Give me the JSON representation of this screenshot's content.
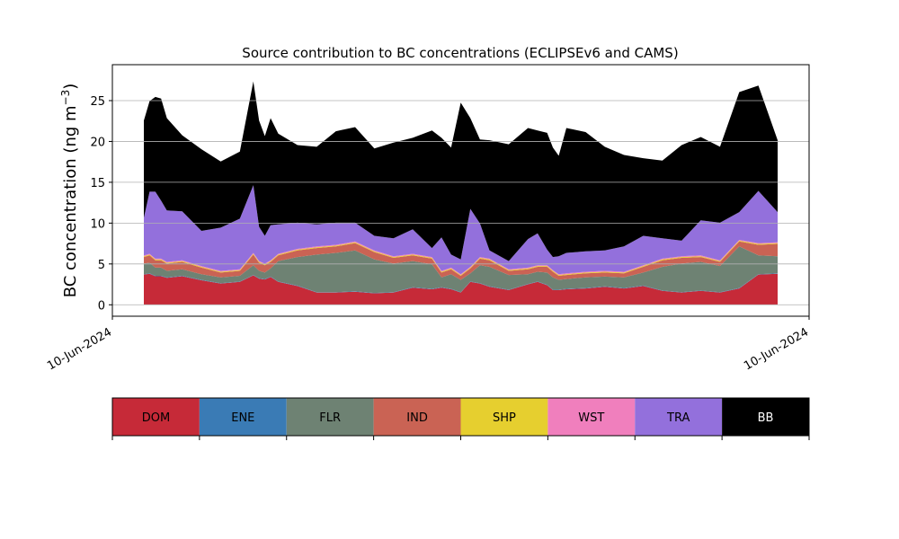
{
  "chart_data": {
    "type": "area",
    "stacked": true,
    "title": "Source contribution to BC concentrations (ECLIPSEv6 and CAMS)",
    "ylabel_text": "BC concentration (ng m",
    "ylabel_sup": "−3",
    "ylabel_close": ")",
    "xlabel": "",
    "ylim": [
      -1.4,
      29.4
    ],
    "yticks": [
      0,
      5,
      10,
      15,
      20,
      25
    ],
    "ygrid": true,
    "xticks": [
      "10-Jun-2024",
      "10-Jun-2024"
    ],
    "x": [
      0,
      0.3,
      0.6,
      0.9,
      1.2,
      2,
      3,
      4,
      5,
      5.7,
      6,
      6.3,
      6.6,
      7,
      8,
      9,
      10,
      11,
      12,
      13,
      14,
      15,
      15.5,
      16,
      16.5,
      17,
      17.5,
      18,
      19,
      20,
      20.5,
      21,
      21.3,
      21.6,
      22,
      23,
      24,
      25,
      26,
      27,
      28,
      29,
      30,
      31,
      32,
      33
    ],
    "series": [
      {
        "name": "DOM",
        "color": "#c62a38",
        "values": [
          3.7,
          3.8,
          3.5,
          3.5,
          3.3,
          3.5,
          3.0,
          2.6,
          2.8,
          3.6,
          3.2,
          3.1,
          3.4,
          2.8,
          2.3,
          1.5,
          1.5,
          1.6,
          1.4,
          1.5,
          2.1,
          1.9,
          2.1,
          1.9,
          1.5,
          2.8,
          2.6,
          2.2,
          1.8,
          2.5,
          2.8,
          2.4,
          1.8,
          1.8,
          1.9,
          2.0,
          2.2,
          2.0,
          2.3,
          1.7,
          1.5,
          1.7,
          1.5,
          2.0,
          3.7,
          3.8
        ]
      },
      {
        "name": "ENE",
        "color": "#3a7bb5",
        "values": [
          0.05,
          0.05,
          0.05,
          0.05,
          0.05,
          0.05,
          0.05,
          0.05,
          0.05,
          0.05,
          0.05,
          0.05,
          0.05,
          0.05,
          0.05,
          0.05,
          0.05,
          0.05,
          0.05,
          0.05,
          0.05,
          0.05,
          0.05,
          0.05,
          0.05,
          0.05,
          0.05,
          0.05,
          0.05,
          0.05,
          0.05,
          0.05,
          0.05,
          0.05,
          0.05,
          0.05,
          0.05,
          0.05,
          0.05,
          0.05,
          0.05,
          0.05,
          0.05,
          0.05,
          0.05,
          0.05
        ]
      },
      {
        "name": "FLR",
        "color": "#6e8273",
        "values": [
          1.3,
          1.3,
          1.0,
          1.0,
          0.8,
          0.8,
          0.7,
          0.7,
          0.7,
          1.2,
          0.9,
          0.8,
          1.0,
          2.5,
          3.5,
          4.6,
          4.8,
          5.0,
          4.1,
          3.5,
          3.2,
          3.0,
          1.2,
          1.8,
          1.5,
          1.0,
          2.2,
          2.4,
          1.8,
          1.2,
          1.2,
          1.5,
          1.5,
          1.2,
          1.2,
          1.3,
          1.2,
          1.3,
          1.6,
          2.9,
          3.5,
          3.5,
          3.2,
          5.1,
          2.3,
          2.1
        ]
      },
      {
        "name": "IND",
        "color": "#ca6354",
        "values": [
          0.8,
          0.9,
          0.9,
          0.9,
          0.9,
          0.9,
          0.8,
          0.6,
          0.6,
          1.3,
          1.0,
          0.9,
          0.8,
          0.7,
          0.8,
          0.8,
          0.8,
          0.9,
          0.9,
          0.7,
          0.7,
          0.7,
          0.6,
          0.6,
          0.5,
          0.6,
          0.8,
          0.8,
          0.5,
          0.6,
          0.6,
          0.7,
          0.7,
          0.5,
          0.5,
          0.5,
          0.5,
          0.5,
          0.7,
          0.8,
          0.7,
          0.6,
          0.5,
          0.6,
          1.3,
          1.5
        ]
      },
      {
        "name": "SHP",
        "color": "#e6cf2f",
        "values": [
          0.1,
          0.1,
          0.1,
          0.1,
          0.1,
          0.1,
          0.1,
          0.1,
          0.1,
          0.1,
          0.1,
          0.1,
          0.1,
          0.1,
          0.1,
          0.1,
          0.1,
          0.1,
          0.1,
          0.1,
          0.1,
          0.1,
          0.1,
          0.1,
          0.1,
          0.1,
          0.1,
          0.1,
          0.1,
          0.1,
          0.1,
          0.1,
          0.1,
          0.1,
          0.1,
          0.1,
          0.1,
          0.1,
          0.1,
          0.1,
          0.1,
          0.1,
          0.1,
          0.1,
          0.1,
          0.1
        ]
      },
      {
        "name": "WST",
        "color": "#f07fbd",
        "values": [
          0.1,
          0.1,
          0.1,
          0.1,
          0.1,
          0.1,
          0.1,
          0.1,
          0.1,
          0.1,
          0.1,
          0.1,
          0.1,
          0.1,
          0.1,
          0.1,
          0.1,
          0.1,
          0.1,
          0.1,
          0.1,
          0.1,
          0.1,
          0.1,
          0.1,
          0.1,
          0.1,
          0.1,
          0.1,
          0.1,
          0.1,
          0.1,
          0.1,
          0.1,
          0.1,
          0.1,
          0.1,
          0.1,
          0.1,
          0.1,
          0.1,
          0.1,
          0.1,
          0.1,
          0.1,
          0.1
        ]
      },
      {
        "name": "TRA",
        "color": "#9370dc",
        "values": [
          4.6,
          7.6,
          8.2,
          7.1,
          6.3,
          6.0,
          4.3,
          5.3,
          6.2,
          8.3,
          4.2,
          3.4,
          4.3,
          3.6,
          3.2,
          2.7,
          2.7,
          2.3,
          1.8,
          2.2,
          3.0,
          1.1,
          4.1,
          1.6,
          1.8,
          7.1,
          4.1,
          1.0,
          1.0,
          3.5,
          3.9,
          1.9,
          1.6,
          2.2,
          2.5,
          2.5,
          2.5,
          3.1,
          3.6,
          2.5,
          1.9,
          4.3,
          4.6,
          3.4,
          6.4,
          3.7
        ]
      },
      {
        "name": "BB",
        "color": "#000000",
        "values": [
          11.9,
          11.1,
          11.6,
          12.5,
          11.3,
          9.3,
          10.0,
          8.1,
          8.2,
          12.7,
          13.0,
          12.2,
          13.1,
          11.1,
          9.5,
          9.5,
          11.2,
          11.7,
          10.7,
          11.7,
          11.2,
          14.4,
          12.2,
          13.1,
          19.2,
          11.1,
          10.3,
          13.5,
          14.3,
          13.6,
          12.6,
          14.3,
          13.4,
          12.3,
          15.3,
          14.6,
          12.7,
          11.2,
          9.5,
          9.5,
          11.7,
          10.2,
          9.3,
          14.7,
          12.9,
          8.8
        ]
      }
    ]
  }
}
